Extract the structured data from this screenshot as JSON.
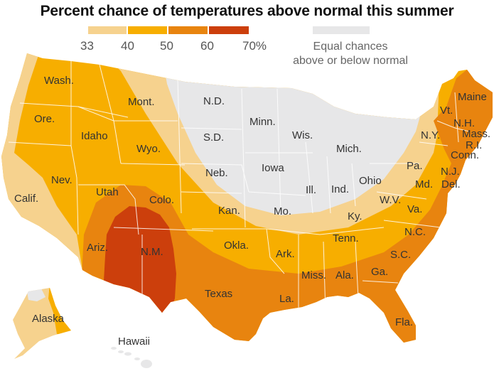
{
  "title": "Percent chance of temperatures above normal this summer",
  "legend": {
    "scale": [
      {
        "label": "33",
        "color": "#f6d28e"
      },
      {
        "label": "40",
        "color": "#f7ae00"
      },
      {
        "label": "50",
        "color": "#e8840f"
      },
      {
        "label": "60",
        "color": "#cc3f0c"
      },
      {
        "label": "70%",
        "color": ""
      }
    ],
    "equal_chances": {
      "line1": "Equal chances",
      "line2": "above or below normal",
      "color": "#e7e7e8"
    }
  },
  "states": {
    "wash": "Wash.",
    "ore": "Ore.",
    "calif": "Calif.",
    "idaho": "Idaho",
    "nev": "Nev.",
    "mont": "Mont.",
    "wyo": "Wyo.",
    "utah": "Utah",
    "ariz": "Ariz.",
    "colo": "Colo.",
    "nm": "N.M.",
    "nd": "N.D.",
    "sd": "S.D.",
    "neb": "Neb.",
    "kan": "Kan.",
    "okla": "Okla.",
    "texas": "Texas",
    "minn": "Minn.",
    "iowa": "Iowa",
    "mo": "Mo.",
    "ark": "Ark.",
    "la": "La.",
    "wis": "Wis.",
    "ill": "Ill.",
    "mich": "Mich.",
    "ind": "Ind.",
    "ohio": "Ohio",
    "ky": "Ky.",
    "tenn": "Tenn.",
    "miss": "Miss.",
    "ala": "Ala.",
    "ga": "Ga.",
    "fla": "Fla.",
    "sc": "S.C.",
    "nc": "N.C.",
    "va": "Va.",
    "wv": "W.V.",
    "pa": "Pa.",
    "ny": "N.Y.",
    "md": "Md.",
    "del": "Del.",
    "nj": "N.J.",
    "conn": "Conn.",
    "ri": "R.I.",
    "mass": "Mass.",
    "nh": "N.H.",
    "vt": "Vt.",
    "maine": "Maine",
    "alaska": "Alaska",
    "hawaii": "Hawaii"
  },
  "colors": {
    "c33": "#f6d28e",
    "c40": "#f7ae00",
    "c50": "#e8840f",
    "c60": "#cc3f0c",
    "equal": "#e7e7e8"
  }
}
